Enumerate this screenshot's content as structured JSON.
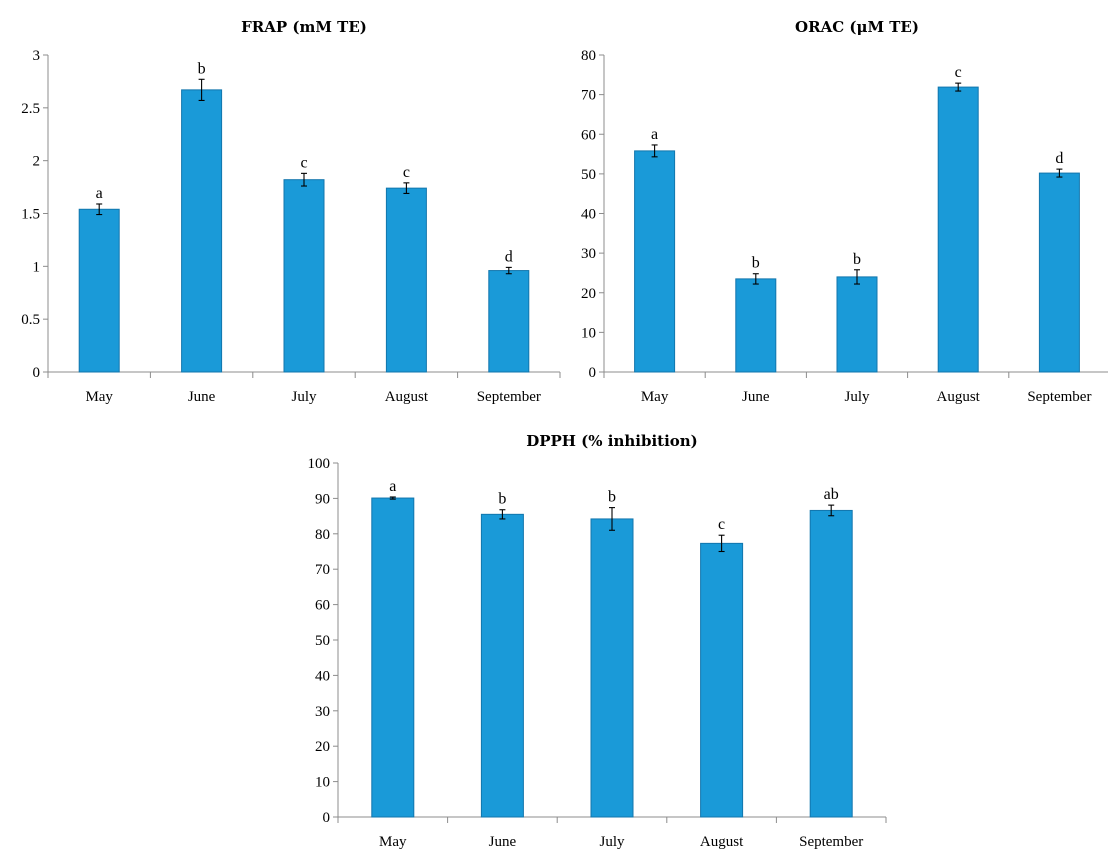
{
  "chart_data": [
    {
      "type": "bar",
      "title": "FRAP (mM TE)",
      "categories": [
        "May",
        "June",
        "July",
        "August",
        "September"
      ],
      "values": [
        1.54,
        2.67,
        1.82,
        1.74,
        0.96
      ],
      "errors": [
        0.05,
        0.1,
        0.06,
        0.05,
        0.03
      ],
      "labels": [
        "a",
        "b",
        "c",
        "c",
        "d"
      ],
      "ylim": [
        0,
        3
      ],
      "yticks": [
        "0",
        "0.5",
        "1",
        "1.5",
        "2",
        "2.5",
        "3"
      ],
      "ytick_values": [
        0,
        0.5,
        1,
        1.5,
        2,
        2.5,
        3
      ],
      "grid": false,
      "colors": {
        "bar": "#1a9ad8",
        "bar_edge": "#1276ad"
      }
    },
    {
      "type": "bar",
      "title": "ORAC (μM TE)",
      "categories": [
        "May",
        "June",
        "July",
        "August",
        "September"
      ],
      "values": [
        55.8,
        23.5,
        24.0,
        71.9,
        50.2
      ],
      "errors": [
        1.5,
        1.3,
        1.8,
        1.0,
        1.0
      ],
      "labels": [
        "a",
        "b",
        "b",
        "c",
        "d"
      ],
      "ylim": [
        0,
        80
      ],
      "yticks": [
        "0",
        "10",
        "20",
        "30",
        "40",
        "50",
        "60",
        "70",
        "80"
      ],
      "ytick_values": [
        0,
        10,
        20,
        30,
        40,
        50,
        60,
        70,
        80
      ],
      "grid": false,
      "colors": {
        "bar": "#1a9ad8",
        "bar_edge": "#1276ad"
      }
    },
    {
      "type": "bar",
      "title": "DPPH (% inhibition)",
      "categories": [
        "May",
        "June",
        "July",
        "August",
        "September"
      ],
      "values": [
        90.1,
        85.5,
        84.2,
        77.3,
        86.6
      ],
      "errors": [
        0.3,
        1.3,
        3.2,
        2.3,
        1.5
      ],
      "labels": [
        "a",
        "b",
        "b",
        "c",
        "ab"
      ],
      "ylim": [
        0,
        100
      ],
      "yticks": [
        "0",
        "10",
        "20",
        "30",
        "40",
        "50",
        "60",
        "70",
        "80",
        "90",
        "100"
      ],
      "ytick_values": [
        0,
        10,
        20,
        30,
        40,
        50,
        60,
        70,
        80,
        90,
        100
      ],
      "grid": false,
      "colors": {
        "bar": "#1a9ad8",
        "bar_edge": "#1276ad"
      }
    }
  ]
}
